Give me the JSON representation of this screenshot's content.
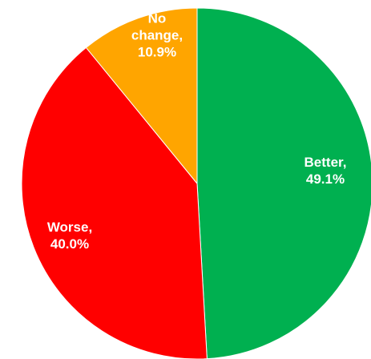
{
  "chart_data": {
    "type": "pie",
    "start_angle_deg": 0,
    "direction": "clockwise",
    "slices": [
      {
        "label": "Better",
        "value": 49.1,
        "text": "Better,\n49.1%",
        "color": "#00b050"
      },
      {
        "label": "Worse",
        "value": 40.0,
        "text": "Worse,\n40.0%",
        "color": "#ff0000"
      },
      {
        "label": "No change",
        "value": 10.9,
        "text": "No\nchange,\n10.9%",
        "color": "#ffa500"
      }
    ]
  }
}
